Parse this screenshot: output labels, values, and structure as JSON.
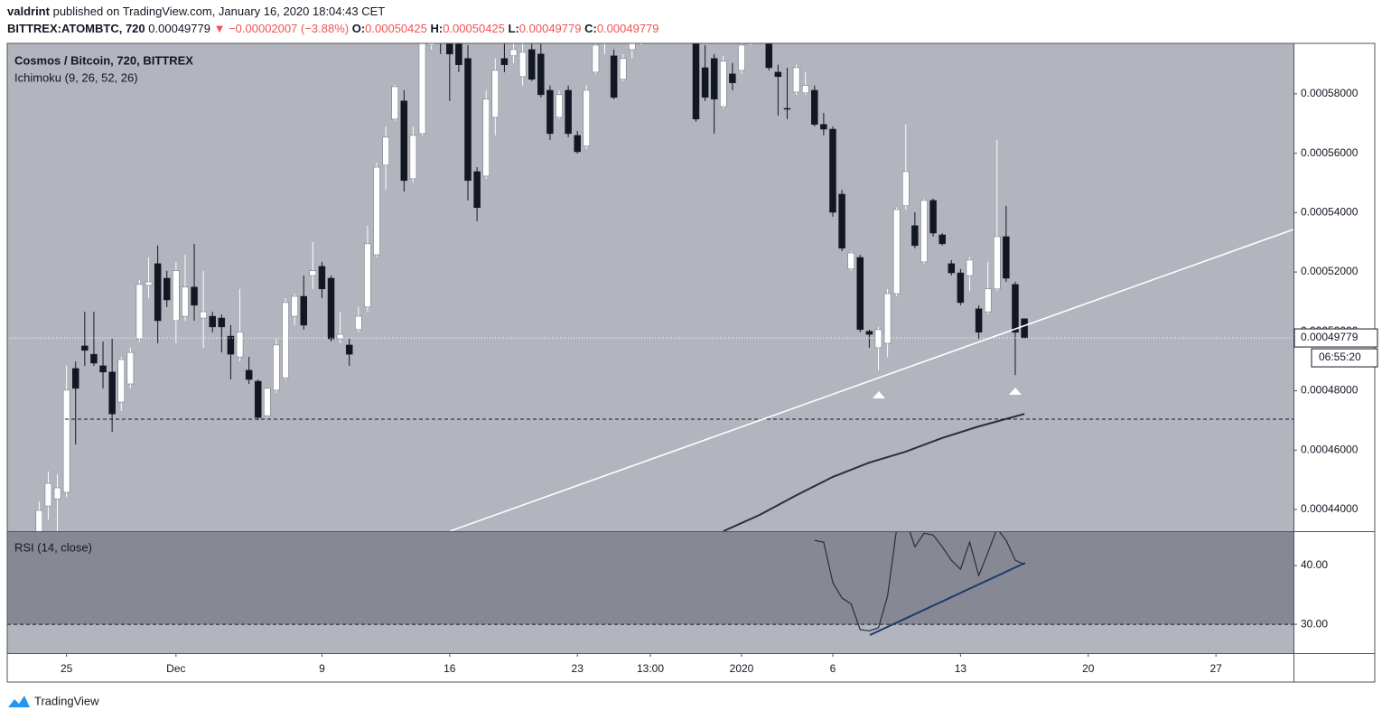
{
  "header": {
    "author": "valdrint",
    "published": "published on TradingView.com, January 16, 2020 18:04:43 CET",
    "symbol": "BITTREX:ATOMBTC, 720",
    "arrow": "▼",
    "change": "−0.00002007 (−3.88%)",
    "ohlc_labels": [
      "O:",
      "H:",
      "L:",
      "C:"
    ]
  },
  "footer": {
    "logo": "TradingView"
  },
  "chart_data": {
    "type": "candlestick",
    "title": "Cosmos / Bitcoin, 720, BITTREX",
    "indicator": "Ichimoku (9, 26, 52, 26)",
    "countdown": "06:55:20",
    "up_color": "#ffffff",
    "down_color": "#131722",
    "xlim": [
      -3.5,
      137.5
    ],
    "xticks": [
      {
        "value": 3,
        "label": "25"
      },
      {
        "value": 15,
        "label": "Dec"
      },
      {
        "value": 31,
        "label": "9"
      },
      {
        "value": 45,
        "label": "16"
      },
      {
        "value": 59,
        "label": "23"
      },
      {
        "value": 67,
        "label": "13:00"
      },
      {
        "value": 77,
        "label": "2020"
      },
      {
        "value": 87,
        "label": "6"
      },
      {
        "value": 101,
        "label": "13"
      },
      {
        "value": 115,
        "label": "20"
      },
      {
        "value": 129,
        "label": "27"
      }
    ],
    "ylim": [
      0.0004327,
      0.000597
    ],
    "yticks": [
      {
        "value": 0.00044,
        "label": "0.00044000"
      },
      {
        "value": 0.00046,
        "label": "0.00046000"
      },
      {
        "value": 0.00048,
        "label": "0.00048000"
      },
      {
        "value": 0.0005,
        "label": "0.00050000"
      },
      {
        "value": 0.00052,
        "label": "0.00052000"
      },
      {
        "value": 0.00054,
        "label": "0.00054000"
      },
      {
        "value": 0.00056,
        "label": "0.00056000"
      },
      {
        "value": 0.00058,
        "label": "0.00058000"
      }
    ],
    "open": [
      0.0004321,
      0.0004412,
      0.0004436,
      0.0004458,
      0.0004875,
      0.0004951,
      0.0004923,
      0.0004884,
      0.0004863,
      0.0004762,
      0.0004823,
      0.0004975,
      0.0005155,
      0.0005228,
      0.0005179,
      0.0005036,
      0.0005051,
      0.0005149,
      0.0005045,
      0.0005051,
      0.0005045,
      0.0004984,
      0.0004914,
      0.0004869,
      0.0004832,
      0.0004716,
      0.0004802,
      0.0004844,
      0.0005051,
      0.0005118,
      0.0005188,
      0.0005219,
      0.0005179,
      0.0004975,
      0.0004954,
      0.0005006,
      0.0005082,
      0.0005258,
      0.000556,
      0.0005715,
      0.0005776,
      0.0005514,
      0.0005666,
      0.0005964,
      0.0006025,
      0.0005995,
      0.000598,
      0.0005919,
      0.0005538,
      0.0005523,
      0.0005721,
      0.0005919,
      0.0005928,
      0.0005858,
      0.0005949,
      0.0005934,
      0.0005812,
      0.0005721,
      0.0005812,
      0.000566,
      0.0005624,
      0.0005873,
      0.000598,
      0.0005928,
      0.0005849,
      0.0005949,
      0.0005995,
      0.0006041,
      0.000601,
      0.0006056,
      0.0006025,
      0.0006071,
      0.0005995,
      0.0005888,
      0.0005919,
      0.0005757,
      0.0005867,
      0.0005879,
      0.000598,
      0.0006041,
      0.0005995,
      0.0005873,
      0.0005751,
      0.0005806,
      0.0005803,
      0.0005812,
      0.0005697,
      0.0005681,
      0.0005462,
      0.000521,
      0.0005249,
      0.0005,
      0.0004945,
      0.000496,
      0.0005127,
      0.0005423,
      0.0005356,
      0.0005234,
      0.0005441,
      0.0005325,
      0.0005228,
      0.0005197,
      0.0005188,
      0.0005076,
      0.0005066,
      0.0005143,
      0.0005319,
      0.0005158,
      0.00050425
    ],
    "high": [
      0.0004427,
      0.0004528,
      0.0004519,
      0.0004884,
      0.0004899,
      0.0005066,
      0.0005066,
      0.0004966,
      0.0004975,
      0.0004914,
      0.0004945,
      0.0005173,
      0.0005249,
      0.0005289,
      0.0005204,
      0.0005234,
      0.0005258,
      0.0005295,
      0.0005204,
      0.0005066,
      0.0005057,
      0.0005021,
      0.0005143,
      0.0004914,
      0.0004838,
      0.0004808,
      0.0004975,
      0.0005112,
      0.0005127,
      0.0005188,
      0.0005301,
      0.0005234,
      0.0005188,
      0.0005066,
      0.0004975,
      0.0005082,
      0.0005356,
      0.0005569,
      0.000569,
      0.0005831,
      0.0005812,
      0.000569,
      0.0006025,
      0.0006086,
      0.0006086,
      0.0006025,
      0.0005995,
      0.0005964,
      0.0005553,
      0.0005812,
      0.0005919,
      0.000598,
      0.0005995,
      0.000598,
      0.0005995,
      0.000598,
      0.0005828,
      0.0005812,
      0.0005828,
      0.0005675,
      0.0005828,
      0.0005995,
      0.0006056,
      0.0005949,
      0.0005934,
      0.0006041,
      0.0006071,
      0.0006071,
      0.0006086,
      0.0006086,
      0.0006101,
      0.0006101,
      0.0006025,
      0.0005964,
      0.0005934,
      0.0005928,
      0.0005904,
      0.0005995,
      0.0006071,
      0.0006071,
      0.0006025,
      0.0005898,
      0.0005888,
      0.0005898,
      0.0005873,
      0.0005828,
      0.0005736,
      0.000569,
      0.0005477,
      0.000527,
      0.0005258,
      0.0005006,
      0.0005015,
      0.0005143,
      0.0005417,
      0.0005697,
      0.0005401,
      0.0005447,
      0.0005447,
      0.0005331,
      0.000524,
      0.000521,
      0.0005249,
      0.0005088,
      0.0005234,
      0.0005645,
      0.0005423,
      0.0005167,
      0.00050425
    ],
    "low": [
      0.000429,
      0.0004366,
      0.0004321,
      0.0004442,
      0.0004619,
      0.0004884,
      0.0004884,
      0.0004808,
      0.0004662,
      0.0004732,
      0.0004808,
      0.0004966,
      0.0005112,
      0.000496,
      0.0005082,
      0.000496,
      0.0005036,
      0.0005036,
      0.0004945,
      0.0004997,
      0.0004929,
      0.0004838,
      0.0004899,
      0.0004823,
      0.0004701,
      0.000471,
      0.0004792,
      0.0004838,
      0.0005021,
      0.0005006,
      0.0005143,
      0.0005112,
      0.0004966,
      0.000496,
      0.0004884,
      0.0004997,
      0.0005066,
      0.0005249,
      0.0005477,
      0.0005709,
      0.0005471,
      0.0005502,
      0.000566,
      0.0005949,
      0.0005934,
      0.0005776,
      0.0005873,
      0.0005441,
      0.0005371,
      0.0005514,
      0.000566,
      0.0005873,
      0.0005904,
      0.0005828,
      0.0005843,
      0.0005788,
      0.0005645,
      0.0005715,
      0.0005654,
      0.0005599,
      0.0005614,
      0.0005867,
      0.0005934,
      0.0005782,
      0.0005843,
      0.0005919,
      0.0005964,
      0.000598,
      0.000598,
      0.0005995,
      0.0005995,
      0.000597,
      0.0005706,
      0.0005776,
      0.0005666,
      0.0005751,
      0.0005812,
      0.0005867,
      0.0005964,
      0.000598,
      0.0005879,
      0.0005727,
      0.0005715,
      0.0005797,
      0.0005797,
      0.000569,
      0.000566,
      0.0005386,
      0.000527,
      0.0005204,
      0.0004997,
      0.0004945,
      0.0004869,
      0.0004914,
      0.0005118,
      0.000541,
      0.000528,
      0.0005228,
      0.0005319,
      0.0005289,
      0.0005188,
      0.0005088,
      0.0005136,
      0.0004975,
      0.0005057,
      0.0005136,
      0.0005167,
      0.0004853,
      0.00049779
    ],
    "close": [
      0.0004397,
      0.0004488,
      0.0004473,
      0.0004802,
      0.0004808,
      0.0004936,
      0.0004893,
      0.0004863,
      0.0004722,
      0.0004905,
      0.0004929,
      0.0005158,
      0.0005167,
      0.0005036,
      0.0005106,
      0.0005204,
      0.0005149,
      0.0005088,
      0.0005066,
      0.0005015,
      0.0005015,
      0.0004923,
      0.0004997,
      0.0004838,
      0.000471,
      0.0004808,
      0.0004954,
      0.0005097,
      0.0005118,
      0.0005021,
      0.0005204,
      0.0005143,
      0.0004975,
      0.000499,
      0.0004923,
      0.0005051,
      0.0005295,
      0.0005553,
      0.0005654,
      0.0005824,
      0.0005508,
      0.000566,
      0.0005995,
      0.0006056,
      0.000598,
      0.0005934,
      0.0005898,
      0.0005508,
      0.0005417,
      0.0005782,
      0.0005879,
      0.0005898,
      0.0005949,
      0.000594,
      0.0005849,
      0.0005797,
      0.0005666,
      0.0005797,
      0.0005666,
      0.0005605,
      0.0005812,
      0.0005964,
      0.0006025,
      0.0005788,
      0.0005919,
      0.000601,
      0.0006041,
      0.000601,
      0.0006056,
      0.0006025,
      0.0006071,
      0.0005995,
      0.0005715,
      0.0005788,
      0.0005782,
      0.000591,
      0.0005837,
      0.0005964,
      0.0006041,
      0.0005995,
      0.0005888,
      0.0005858,
      0.0005748,
      0.0005888,
      0.0005828,
      0.0005697,
      0.0005681,
      0.0005401,
      0.000528,
      0.0005264,
      0.0005006,
      0.000499,
      0.0005006,
      0.0005127,
      0.000541,
      0.0005538,
      0.0005289,
      0.0005441,
      0.0005331,
      0.0005295,
      0.0005197,
      0.0005097,
      0.000524,
      0.0004997,
      0.0005143,
      0.0005319,
      0.0005179,
      0.0004997,
      0.00049779
    ],
    "ma": {
      "color": "#2a2e39",
      "x": [
        75,
        79,
        83,
        87,
        91,
        95,
        99,
        103,
        108
      ],
      "values": [
        0.0004327,
        0.0004382,
        0.0004448,
        0.000451,
        0.0004558,
        0.0004595,
        0.0004641,
        0.000468,
        0.0004722
      ]
    },
    "rsi": {
      "title": "RSI (14, close)",
      "color": "#2a2e39",
      "ylim": [
        25.1,
        45.7
      ],
      "yticks": [
        {
          "value": 40,
          "label": "40.00"
        },
        {
          "value": 30,
          "label": "30.00"
        }
      ],
      "values": [
        null,
        null,
        null,
        null,
        null,
        null,
        null,
        null,
        null,
        null,
        null,
        null,
        null,
        null,
        null,
        null,
        null,
        null,
        null,
        null,
        null,
        null,
        null,
        null,
        null,
        null,
        null,
        null,
        null,
        null,
        null,
        null,
        null,
        null,
        null,
        null,
        null,
        null,
        null,
        null,
        null,
        null,
        null,
        null,
        null,
        null,
        null,
        null,
        null,
        null,
        null,
        null,
        null,
        null,
        null,
        null,
        null,
        null,
        null,
        null,
        null,
        null,
        null,
        null,
        null,
        null,
        null,
        null,
        null,
        null,
        null,
        null,
        null,
        null,
        null,
        null,
        null,
        null,
        null,
        null,
        null,
        null,
        null,
        null,
        null,
        44.3,
        44.0,
        37.1,
        34.5,
        33.5,
        29.1,
        28.9,
        29.4,
        34.8,
        46.3,
        47.8,
        43.2,
        45.5,
        45.2,
        43.2,
        40.9,
        39.4,
        44.0,
        38.3,
        42.2,
        46.3,
        44.3,
        40.9,
        40.2
      ]
    }
  }
}
